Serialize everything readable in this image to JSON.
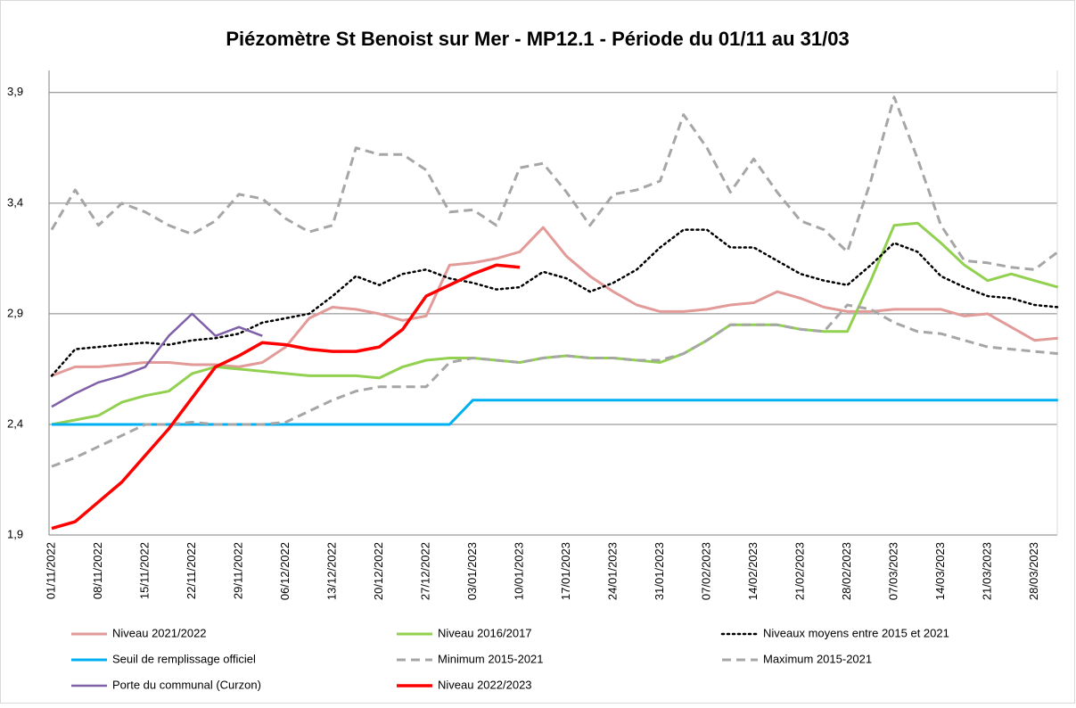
{
  "chart_data": {
    "type": "line",
    "title": "Piézomètre St Benoist sur Mer - MP12.1 - Période du 01/11 au 31/03",
    "categories": [
      "01/11/2022",
      null,
      "08/11/2022",
      null,
      "15/11/2022",
      null,
      "22/11/2022",
      null,
      "29/11/2022",
      null,
      "06/12/2022",
      null,
      "13/12/2022",
      null,
      "20/12/2022",
      null,
      "27/12/2022",
      null,
      "03/01/2023",
      null,
      "10/01/2023",
      null,
      "17/01/2023",
      null,
      "24/01/2023",
      null,
      "31/01/2023",
      null,
      "07/02/2023",
      null,
      "14/02/2023",
      null,
      "21/02/2023",
      null,
      "28/02/2023",
      null,
      "07/03/2023",
      null,
      "14/03/2023",
      null,
      "21/03/2023",
      null,
      "28/03/2023",
      null
    ],
    "ylim": [
      1.9,
      4.0
    ],
    "yticks": [
      {
        "value": 1.9,
        "label": "1,9"
      },
      {
        "value": 2.4,
        "label": "2,4"
      },
      {
        "value": 2.9,
        "label": "2,9"
      },
      {
        "value": 3.4,
        "label": "3,4"
      },
      {
        "value": 3.9,
        "label": "3,9"
      }
    ],
    "grid": true,
    "series": [
      {
        "name": "Niveau 2021/2022",
        "color": "#e29b98",
        "style": "solid",
        "width": 3,
        "values": [
          2.62,
          2.66,
          2.66,
          2.67,
          2.68,
          2.68,
          2.67,
          2.67,
          2.66,
          2.68,
          2.75,
          2.88,
          2.93,
          2.92,
          2.9,
          2.87,
          2.89,
          3.12,
          3.13,
          3.15,
          3.18,
          3.29,
          3.16,
          3.07,
          3.0,
          2.94,
          2.91,
          2.91,
          2.92,
          2.94,
          2.95,
          3.0,
          2.97,
          2.93,
          2.91,
          2.91,
          2.92,
          2.92,
          2.92,
          2.89,
          2.9,
          2.84,
          2.78,
          2.79
        ]
      },
      {
        "name": "Niveau 2016/2017",
        "color": "#92d050",
        "style": "solid",
        "width": 3,
        "values": [
          2.4,
          2.42,
          2.44,
          2.5,
          2.53,
          2.55,
          2.63,
          2.66,
          2.65,
          2.64,
          2.63,
          2.62,
          2.62,
          2.62,
          2.61,
          2.66,
          2.69,
          2.7,
          2.7,
          2.69,
          2.68,
          2.7,
          2.71,
          2.7,
          2.7,
          2.69,
          2.68,
          2.72,
          2.78,
          2.85,
          2.85,
          2.85,
          2.83,
          2.82,
          2.82,
          3.05,
          3.3,
          3.31,
          3.22,
          3.12,
          3.05,
          3.08,
          3.05,
          3.02
        ]
      },
      {
        "name": "Niveaux moyens entre 2015 et 2021",
        "color": "#000000",
        "style": "dotted",
        "width": 2.5,
        "values": [
          2.62,
          2.74,
          2.75,
          2.76,
          2.77,
          2.76,
          2.78,
          2.79,
          2.81,
          2.86,
          2.88,
          2.9,
          2.98,
          3.07,
          3.03,
          3.08,
          3.1,
          3.06,
          3.04,
          3.01,
          3.02,
          3.09,
          3.06,
          3.0,
          3.04,
          3.1,
          3.2,
          3.28,
          3.28,
          3.2,
          3.2,
          3.14,
          3.08,
          3.05,
          3.03,
          3.12,
          3.22,
          3.18,
          3.07,
          3.02,
          2.98,
          2.97,
          2.94,
          2.93
        ]
      },
      {
        "name": "Seuil de remplissage officiel",
        "color": "#00b0f0",
        "style": "solid",
        "width": 3,
        "values": [
          2.4,
          2.4,
          2.4,
          2.4,
          2.4,
          2.4,
          2.4,
          2.4,
          2.4,
          2.4,
          2.4,
          2.4,
          2.4,
          2.4,
          2.4,
          2.4,
          2.4,
          2.4,
          2.51,
          2.51,
          2.51,
          2.51,
          2.51,
          2.51,
          2.51,
          2.51,
          2.51,
          2.51,
          2.51,
          2.51,
          2.51,
          2.51,
          2.51,
          2.51,
          2.51,
          2.51,
          2.51,
          2.51,
          2.51,
          2.51,
          2.51,
          2.51,
          2.51,
          2.51
        ]
      },
      {
        "name": "Minimum 2015-2021",
        "color": "#a6a6a6",
        "style": "dashed",
        "width": 3,
        "values": [
          2.21,
          2.25,
          2.3,
          2.35,
          2.4,
          2.4,
          2.41,
          2.4,
          2.4,
          2.4,
          2.41,
          2.46,
          2.51,
          2.55,
          2.57,
          2.57,
          2.57,
          2.68,
          2.7,
          2.69,
          2.68,
          2.7,
          2.71,
          2.7,
          2.7,
          2.69,
          2.69,
          2.72,
          2.78,
          2.85,
          2.85,
          2.85,
          2.83,
          2.82,
          2.94,
          2.92,
          2.86,
          2.82,
          2.81,
          2.78,
          2.75,
          2.74,
          2.73,
          2.72
        ]
      },
      {
        "name": "Maximum 2015-2021",
        "color": "#a6a6a6",
        "style": "dashed",
        "width": 3,
        "values": [
          3.28,
          3.46,
          3.3,
          3.4,
          3.36,
          3.3,
          3.26,
          3.32,
          3.44,
          3.42,
          3.33,
          3.27,
          3.3,
          3.65,
          3.62,
          3.62,
          3.55,
          3.36,
          3.37,
          3.3,
          3.56,
          3.58,
          3.45,
          3.3,
          3.44,
          3.46,
          3.5,
          3.8,
          3.65,
          3.45,
          3.6,
          3.45,
          3.32,
          3.28,
          3.18,
          3.5,
          3.88,
          3.6,
          3.3,
          3.14,
          3.13,
          3.11,
          3.1,
          3.18
        ]
      },
      {
        "name": "Porte du communal (Curzon)",
        "color": "#7f60a8",
        "style": "solid",
        "width": 2.5,
        "values": [
          2.48,
          2.54,
          2.59,
          2.62,
          2.66,
          2.8,
          2.9,
          2.8,
          2.84,
          2.8,
          null,
          null,
          null,
          null,
          null,
          null,
          null,
          null,
          null,
          null,
          null,
          null,
          null,
          null,
          null,
          null,
          null,
          null,
          null,
          null,
          null,
          null,
          null,
          null,
          null,
          null,
          null,
          null,
          null,
          null,
          null,
          null,
          null,
          null
        ]
      },
      {
        "name": "Niveau 2022/2023",
        "color": "#ff0000",
        "style": "solid",
        "width": 3.5,
        "values": [
          1.93,
          1.96,
          2.05,
          2.14,
          2.26,
          2.38,
          2.52,
          2.66,
          2.71,
          2.77,
          2.76,
          2.74,
          2.73,
          2.73,
          2.75,
          2.83,
          2.98,
          3.03,
          3.08,
          3.12,
          3.11,
          null,
          null,
          null,
          null,
          null,
          null,
          null,
          null,
          null,
          null,
          null,
          null,
          null,
          null,
          null,
          null,
          null,
          null,
          null,
          null,
          null,
          null,
          null
        ]
      }
    ]
  }
}
